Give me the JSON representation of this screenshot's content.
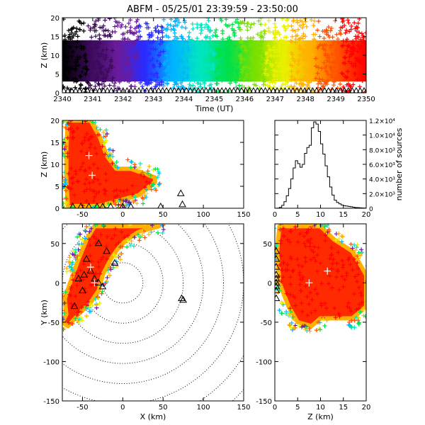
{
  "title": "ABFM - 05/25/01 23:39:59 - 23:50:00",
  "chart_data": [
    {
      "id": "time-height",
      "type": "scatter",
      "title": "ABFM - 05/25/01 23:39:59 - 23:50:00",
      "xlabel": "Time (UT)",
      "ylabel": "Z (km)",
      "xlim": [
        2340,
        2350
      ],
      "ylim": [
        0,
        20
      ],
      "xticks": [
        "2340",
        "2341",
        "2342",
        "2343",
        "2344",
        "2345",
        "2346",
        "2347",
        "2348",
        "2349",
        "2350"
      ],
      "yticks": [
        "0",
        "5",
        "10",
        "15",
        "20"
      ],
      "color_by": "time",
      "colormap": [
        "#000000",
        "#3b0a5a",
        "#6a1b9a",
        "#2b2bff",
        "#00b4ff",
        "#00e5c0",
        "#00e04a",
        "#7be000",
        "#e8f000",
        "#ffb000",
        "#ff5000",
        "#ff0000"
      ],
      "source_band": {
        "x_start": 2340,
        "x_end": 2350,
        "z_core": [
          3,
          14
        ],
        "z_extent": [
          0,
          20
        ]
      },
      "stations_marker": "triangle"
    },
    {
      "id": "x-z",
      "type": "scatter",
      "xlabel": "",
      "ylabel": "Z (km)",
      "xlim": [
        -75,
        150
      ],
      "ylim": [
        0,
        20
      ],
      "xticks": [
        "-50",
        "0",
        "50",
        "100",
        "150"
      ],
      "yticks": [
        "0",
        "5",
        "10",
        "15",
        "20"
      ],
      "source_region": [
        [
          -68,
          20
        ],
        [
          -40,
          20
        ],
        [
          -28,
          16
        ],
        [
          -20,
          12
        ],
        [
          -8,
          9
        ],
        [
          10,
          9
        ],
        [
          25,
          8
        ],
        [
          40,
          7
        ],
        [
          40,
          6
        ],
        [
          20,
          3
        ],
        [
          0,
          2
        ],
        [
          -30,
          0.5
        ],
        [
          -68,
          0.5
        ],
        [
          -70,
          6
        ],
        [
          -70,
          14
        ]
      ],
      "centroids": [
        [
          -42,
          12
        ],
        [
          -38,
          7.5
        ]
      ],
      "stations": [
        [
          -62,
          0
        ],
        [
          -52,
          0
        ],
        [
          -42,
          0
        ],
        [
          -32,
          0
        ],
        [
          -25,
          0
        ],
        [
          -15,
          0
        ],
        [
          0,
          0
        ],
        [
          10,
          0
        ],
        [
          47,
          0
        ],
        [
          72,
          3
        ],
        [
          74,
          0.5
        ]
      ]
    },
    {
      "id": "altitude-histogram",
      "type": "line",
      "xlabel": "",
      "ylabel": "number of sources",
      "xlim": [
        0,
        20
      ],
      "ylim": [
        0,
        12000
      ],
      "xticks": [
        "0",
        "5",
        "10",
        "15",
        "20"
      ],
      "yticks": [
        "0",
        "2.0×10³",
        "4.0×10³",
        "6.0×10³",
        "8.0×10³",
        "1.0×10⁴",
        "1.2×10⁴"
      ],
      "x": [
        0,
        0.5,
        1,
        1.5,
        2,
        2.5,
        3,
        3.5,
        4,
        4.5,
        5,
        5.5,
        6,
        6.5,
        7,
        7.5,
        8,
        8.5,
        9,
        9.5,
        10,
        10.5,
        11,
        11.5,
        12,
        12.5,
        13,
        13.5,
        14,
        14.5,
        15,
        15.5,
        16,
        16.5,
        17,
        17.5,
        18,
        18.5,
        19,
        19.5
      ],
      "values": [
        0,
        30,
        120,
        400,
        900,
        1700,
        2700,
        4000,
        5500,
        6500,
        6100,
        5600,
        6000,
        7500,
        8300,
        8600,
        11000,
        11800,
        11500,
        10500,
        8800,
        7400,
        5800,
        4300,
        2900,
        1800,
        1100,
        800,
        600,
        450,
        350,
        300,
        250,
        200,
        150,
        100,
        80,
        60,
        40,
        20
      ]
    },
    {
      "id": "x-y",
      "type": "scatter",
      "xlabel": "X (km)",
      "ylabel": "Y (km)",
      "xlim": [
        -75,
        150
      ],
      "ylim": [
        -150,
        75
      ],
      "xticks": [
        "-50",
        "0",
        "50",
        "100",
        "150"
      ],
      "yticks": [
        "-150",
        "-100",
        "-50",
        "0",
        "50"
      ],
      "range_rings_km": [
        25,
        50,
        75,
        100,
        125,
        150,
        175,
        200
      ],
      "source_region": [
        [
          -75,
          -50
        ],
        [
          -70,
          -40
        ],
        [
          -72,
          -20
        ],
        [
          -62,
          10
        ],
        [
          -55,
          30
        ],
        [
          -45,
          55
        ],
        [
          -35,
          72
        ],
        [
          10,
          72
        ],
        [
          30,
          72
        ],
        [
          45,
          72
        ],
        [
          20,
          65
        ],
        [
          5,
          55
        ],
        [
          -5,
          45
        ],
        [
          -15,
          30
        ],
        [
          -25,
          10
        ],
        [
          -30,
          -10
        ],
        [
          -40,
          -25
        ],
        [
          -55,
          -40
        ],
        [
          -68,
          -55
        ]
      ],
      "centroids": [
        [
          -40,
          20
        ],
        [
          -35,
          0
        ]
      ],
      "stations": [
        [
          -45,
          30
        ],
        [
          -40,
          15
        ],
        [
          -35,
          5
        ],
        [
          -30,
          0
        ],
        [
          -25,
          -5
        ],
        [
          -20,
          40
        ],
        [
          -10,
          25
        ],
        [
          -50,
          -10
        ],
        [
          -48,
          10
        ],
        [
          -55,
          5
        ],
        [
          73,
          -20
        ],
        [
          75,
          -22
        ],
        [
          -30,
          50
        ],
        [
          -60,
          -30
        ]
      ]
    },
    {
      "id": "z-y",
      "type": "scatter",
      "xlabel": "Z (km)",
      "ylabel": "",
      "xlim": [
        0,
        20
      ],
      "ylim": [
        -150,
        75
      ],
      "xticks": [
        "0",
        "5",
        "10",
        "15",
        "20"
      ],
      "yticks": [
        "-150",
        "-100",
        "-50",
        "0",
        "50"
      ],
      "source_region": [
        [
          1,
          72
        ],
        [
          10,
          72
        ],
        [
          13,
          55
        ],
        [
          17,
          40
        ],
        [
          20,
          10
        ],
        [
          20,
          -30
        ],
        [
          17,
          -45
        ],
        [
          10,
          -45
        ],
        [
          8,
          -55
        ],
        [
          5,
          -50
        ],
        [
          3,
          -30
        ],
        [
          1,
          0
        ],
        [
          0.5,
          40
        ]
      ],
      "centroids": [
        [
          7.5,
          0
        ],
        [
          11.5,
          15
        ]
      ],
      "stations": [
        [
          0,
          40
        ],
        [
          0,
          30
        ],
        [
          0,
          20
        ],
        [
          0,
          10
        ],
        [
          0,
          5
        ],
        [
          0,
          0
        ],
        [
          0,
          -5
        ],
        [
          0,
          -10
        ],
        [
          0,
          -20
        ]
      ]
    }
  ]
}
